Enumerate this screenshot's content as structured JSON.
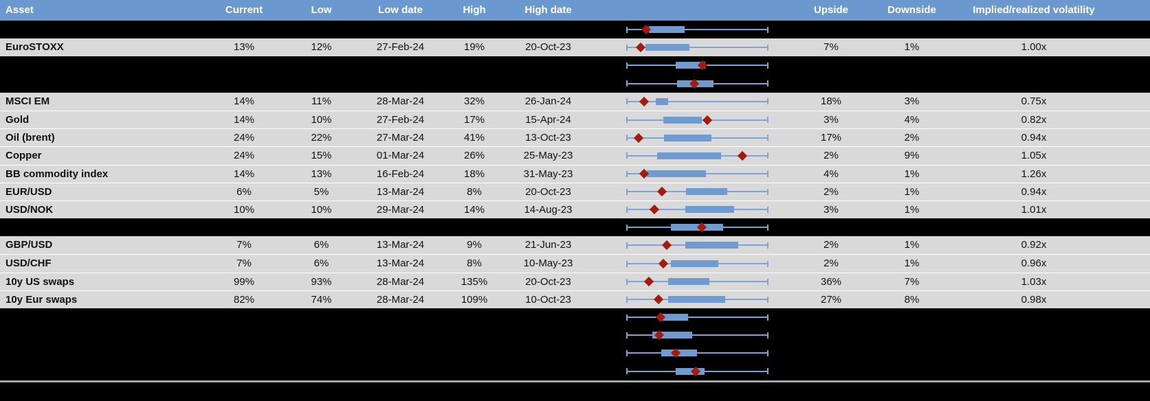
{
  "header": {
    "columns": [
      "Asset",
      "Current",
      "Low",
      "Low date",
      "High",
      "High date",
      "Upside",
      "Downside",
      "Implied/realized volatility"
    ]
  },
  "rows": [
    {
      "variant": "hidden",
      "chart": {
        "box_start": 0.158,
        "box_end": 0.41,
        "diamond": 0.137
      }
    },
    {
      "variant": "data",
      "asset": "EuroSTOXX",
      "current": "13%",
      "low": "12%",
      "low_date": "27-Feb-24",
      "high": "19%",
      "high_date": "20-Oct-23",
      "upside": "7%",
      "downside": "1%",
      "implied": "1.00x",
      "chart": {
        "box_start": 0.133,
        "box_end": 0.442,
        "diamond": 0.096
      }
    },
    {
      "variant": "hidden",
      "chart": {
        "box_start": 0.345,
        "box_end": 0.557,
        "diamond": 0.535
      }
    },
    {
      "variant": "hidden",
      "chart": {
        "box_start": 0.356,
        "box_end": 0.617,
        "diamond": 0.479
      }
    },
    {
      "variant": "data",
      "asset": "MSCI EM",
      "current": "14%",
      "low": "11%",
      "low_date": "28-Mar-24",
      "high": "32%",
      "high_date": "26-Jan-24",
      "upside": "18%",
      "downside": "3%",
      "implied": "0.75x",
      "chart": {
        "box_start": 0.207,
        "box_end": 0.295,
        "diamond": 0.124
      }
    },
    {
      "variant": "data",
      "asset": "Gold",
      "current": "14%",
      "low": "10%",
      "low_date": "27-Feb-24",
      "high": "17%",
      "high_date": "15-Apr-24",
      "upside": "3%",
      "downside": "4%",
      "implied": "0.82x",
      "chart": {
        "box_start": 0.26,
        "box_end": 0.532,
        "diamond": 0.573
      }
    },
    {
      "variant": "data",
      "asset": "Oil (brent)",
      "current": "24%",
      "low": "22%",
      "low_date": "27-Mar-24",
      "high": "41%",
      "high_date": "13-Oct-23",
      "upside": "17%",
      "downside": "2%",
      "implied": "0.94x",
      "chart": {
        "box_start": 0.264,
        "box_end": 0.602,
        "diamond": 0.084
      }
    },
    {
      "variant": "data",
      "asset": "Copper",
      "current": "24%",
      "low": "15%",
      "low_date": "01-Mar-24",
      "high": "26%",
      "high_date": "25-May-23",
      "upside": "2%",
      "downside": "9%",
      "implied": "1.05x",
      "chart": {
        "box_start": 0.215,
        "box_end": 0.666,
        "diamond": 0.82
      }
    },
    {
      "variant": "data",
      "asset": "BB commodity index",
      "current": "14%",
      "low": "13%",
      "low_date": "16-Feb-24",
      "high": "18%",
      "high_date": "31-May-23",
      "upside": "4%",
      "downside": "1%",
      "implied": "1.26x",
      "chart": {
        "box_start": 0.142,
        "box_end": 0.56,
        "diamond": 0.122
      }
    },
    {
      "variant": "data",
      "asset": "EUR/USD",
      "current": "6%",
      "low": "5%",
      "low_date": "13-Mar-24",
      "high": "8%",
      "high_date": "20-Oct-23",
      "upside": "2%",
      "downside": "1%",
      "implied": "0.94x",
      "chart": {
        "box_start": 0.421,
        "box_end": 0.711,
        "diamond": 0.247
      }
    },
    {
      "variant": "data",
      "asset": "USD/NOK",
      "current": "10%",
      "low": "10%",
      "low_date": "29-Mar-24",
      "high": "14%",
      "high_date": "14-Aug-23",
      "upside": "3%",
      "downside": "1%",
      "implied": "1.01x",
      "chart": {
        "box_start": 0.415,
        "box_end": 0.76,
        "diamond": 0.193
      }
    },
    {
      "variant": "hidden",
      "chart": {
        "box_start": 0.313,
        "box_end": 0.682,
        "diamond": 0.532
      }
    },
    {
      "variant": "data",
      "asset": "GBP/USD",
      "current": "7%",
      "low": "6%",
      "low_date": "13-Mar-24",
      "high": "9%",
      "high_date": "21-Jun-23",
      "upside": "2%",
      "downside": "1%",
      "implied": "0.92x",
      "chart": {
        "box_start": 0.413,
        "box_end": 0.788,
        "diamond": 0.283
      }
    },
    {
      "variant": "data",
      "asset": "USD/CHF",
      "current": "7%",
      "low": "6%",
      "low_date": "13-Mar-24",
      "high": "8%",
      "high_date": "10-May-23",
      "upside": "2%",
      "downside": "1%",
      "implied": "0.96x",
      "chart": {
        "box_start": 0.313,
        "box_end": 0.651,
        "diamond": 0.26
      }
    },
    {
      "variant": "data",
      "asset": "10y US swaps",
      "current": "99%",
      "low": "93%",
      "low_date": "28-Mar-24",
      "high": "135%",
      "high_date": "20-Oct-23",
      "upside": "36%",
      "downside": "7%",
      "implied": "1.03x",
      "chart": {
        "box_start": 0.291,
        "box_end": 0.586,
        "diamond": 0.158
      }
    },
    {
      "variant": "data",
      "asset": "10y Eur swaps",
      "current": "82%",
      "low": "74%",
      "low_date": "28-Mar-24",
      "high": "109%",
      "high_date": "10-Oct-23",
      "upside": "27%",
      "downside": "8%",
      "implied": "0.98x",
      "chart": {
        "box_start": 0.291,
        "box_end": 0.7,
        "diamond": 0.223
      }
    },
    {
      "variant": "hidden",
      "chart": {
        "box_start": 0.231,
        "box_end": 0.435,
        "diamond": 0.239
      }
    },
    {
      "variant": "hidden",
      "chart": {
        "box_start": 0.179,
        "box_end": 0.464,
        "diamond": 0.231
      }
    },
    {
      "variant": "hidden",
      "chart": {
        "box_start": 0.244,
        "box_end": 0.496,
        "diamond": 0.345
      }
    },
    {
      "variant": "hidden",
      "chart": {
        "box_start": 0.345,
        "box_end": 0.553,
        "diamond": 0.489
      }
    }
  ],
  "colors": {
    "header_bg": "#6C98D0",
    "row_bg": "#D9D9D9",
    "plot_blue": "#7FA3D8",
    "box_blue": "#6F9BD1",
    "diamond_red": "#A31A0F",
    "separator_gray": "#A6A6A6"
  }
}
